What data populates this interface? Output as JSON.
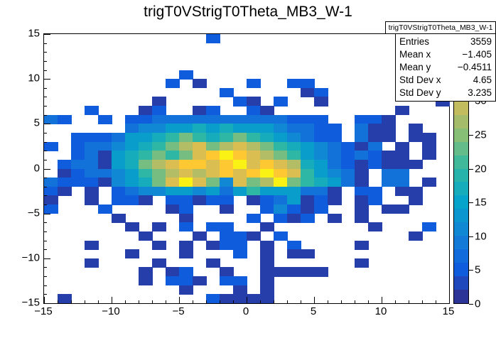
{
  "title": "trigT0VStrigT0Theta_MB3_W-1",
  "stats": {
    "title": "trigT0VStrigT0Theta_MB3_W-1",
    "rows": [
      {
        "label": "Entries",
        "value": "3559"
      },
      {
        "label": "Mean x",
        "value": "−1.405"
      },
      {
        "label": "Mean y",
        "value": "−0.4511"
      },
      {
        "label": "Std Dev x",
        "value": "4.65"
      },
      {
        "label": "Std Dev y",
        "value": "3.235"
      }
    ]
  },
  "axes": {
    "x_tick_values": [
      -15,
      -10,
      -5,
      0,
      5,
      10,
      15
    ],
    "x_tick_labels": [
      "−15",
      "−10",
      "−5",
      "0",
      "5",
      "10",
      "15"
    ],
    "y_tick_values": [
      15,
      10,
      5,
      0,
      -5,
      -10,
      -15
    ],
    "y_tick_labels": [
      "15",
      "10",
      "5",
      "0",
      "−5",
      "−10",
      "−15"
    ],
    "z_tick_values": [
      0,
      5,
      10,
      15,
      20,
      25,
      30,
      35,
      40
    ],
    "z_tick_labels": [
      "0",
      "5",
      "10",
      "15",
      "20",
      "25",
      "30",
      "35",
      "40"
    ]
  },
  "palette": [
    "#352a87",
    "#0f5cdd",
    "#1481d6",
    "#06a4ca",
    "#2eb7a4",
    "#87bf77",
    "#d1bb59",
    "#fec832",
    "#f9fb0e"
  ],
  "chart_data": {
    "type": "heatmap",
    "title": "trigT0VStrigT0Theta_MB3_W-1",
    "xlabel": "",
    "ylabel": "",
    "x_range": [
      -15,
      15
    ],
    "y_range": [
      -15,
      15
    ],
    "z_range": [
      0,
      40
    ],
    "x_bins": 30,
    "y_bins": 30,
    "grid": false,
    "legend_position": "right-colorbar",
    "z_row_order": "rows from y=+15 (top) to y=-15 (bottom); cols from x=-15 (left) to x=+15 (right); 0 = empty bin",
    "z": [
      [
        0,
        0,
        0,
        0,
        0,
        0,
        0,
        0,
        0,
        0,
        0,
        0,
        5,
        0,
        0,
        0,
        0,
        0,
        0,
        0,
        0,
        0,
        0,
        0,
        0,
        0,
        0,
        0,
        0,
        0
      ],
      [
        0,
        0,
        0,
        0,
        0,
        0,
        0,
        0,
        0,
        0,
        0,
        0,
        0,
        0,
        0,
        0,
        0,
        0,
        0,
        0,
        0,
        0,
        0,
        0,
        0,
        0,
        0,
        0,
        0,
        0
      ],
      [
        0,
        0,
        0,
        0,
        0,
        0,
        0,
        0,
        0,
        0,
        0,
        0,
        0,
        0,
        0,
        0,
        0,
        0,
        0,
        0,
        0,
        0,
        0,
        0,
        0,
        0,
        0,
        0,
        0,
        0
      ],
      [
        0,
        0,
        0,
        0,
        0,
        0,
        0,
        0,
        0,
        0,
        0,
        0,
        0,
        0,
        0,
        0,
        0,
        0,
        0,
        0,
        0,
        0,
        0,
        0,
        0,
        0,
        0,
        0,
        0,
        0
      ],
      [
        0,
        0,
        0,
        0,
        0,
        0,
        0,
        0,
        0,
        0,
        5,
        0,
        0,
        0,
        0,
        0,
        0,
        0,
        0,
        0,
        0,
        0,
        0,
        0,
        0,
        0,
        0,
        0,
        0,
        0
      ],
      [
        0,
        0,
        0,
        0,
        0,
        0,
        0,
        0,
        0,
        5,
        0,
        2,
        0,
        0,
        0,
        5,
        0,
        0,
        5,
        5,
        0,
        0,
        0,
        0,
        0,
        0,
        0,
        0,
        5,
        0
      ],
      [
        0,
        0,
        0,
        0,
        0,
        0,
        0,
        0,
        0,
        0,
        0,
        0,
        0,
        5,
        0,
        0,
        0,
        0,
        0,
        2,
        5,
        0,
        0,
        0,
        0,
        0,
        0,
        0,
        0,
        0
      ],
      [
        0,
        0,
        0,
        0,
        0,
        0,
        0,
        0,
        2,
        0,
        0,
        0,
        0,
        0,
        5,
        2,
        0,
        5,
        0,
        0,
        2,
        0,
        0,
        0,
        0,
        0,
        0,
        0,
        0,
        2
      ],
      [
        0,
        0,
        0,
        5,
        0,
        0,
        0,
        2,
        5,
        0,
        0,
        2,
        5,
        0,
        0,
        5,
        2,
        0,
        0,
        0,
        0,
        0,
        0,
        0,
        0,
        0,
        2,
        0,
        0,
        0
      ],
      [
        8,
        5,
        0,
        0,
        5,
        0,
        5,
        5,
        8,
        8,
        8,
        8,
        8,
        8,
        8,
        8,
        8,
        8,
        5,
        5,
        5,
        0,
        0,
        5,
        5,
        2,
        0,
        0,
        0,
        0
      ],
      [
        0,
        0,
        0,
        0,
        0,
        0,
        8,
        11,
        11,
        14,
        14,
        17,
        14,
        17,
        14,
        14,
        14,
        11,
        8,
        8,
        5,
        5,
        0,
        8,
        2,
        2,
        0,
        2,
        0,
        0
      ],
      [
        0,
        0,
        5,
        5,
        5,
        8,
        14,
        14,
        17,
        20,
        24,
        20,
        17,
        20,
        24,
        20,
        17,
        14,
        11,
        8,
        5,
        5,
        0,
        8,
        2,
        2,
        0,
        2,
        2,
        0
      ],
      [
        5,
        0,
        5,
        8,
        8,
        11,
        14,
        17,
        20,
        24,
        28,
        31,
        24,
        28,
        31,
        28,
        24,
        20,
        17,
        14,
        11,
        8,
        5,
        2,
        8,
        0,
        2,
        0,
        2,
        0
      ],
      [
        0,
        0,
        5,
        8,
        2,
        14,
        17,
        20,
        24,
        20,
        24,
        31,
        35,
        39,
        35,
        31,
        28,
        24,
        20,
        14,
        11,
        8,
        5,
        8,
        5,
        2,
        2,
        0,
        2,
        0
      ],
      [
        0,
        5,
        8,
        8,
        2,
        14,
        17,
        24,
        28,
        31,
        35,
        35,
        31,
        35,
        39,
        31,
        35,
        31,
        28,
        17,
        14,
        8,
        5,
        2,
        5,
        2,
        2,
        2,
        0,
        0
      ],
      [
        0,
        2,
        5,
        8,
        8,
        11,
        14,
        20,
        24,
        28,
        31,
        28,
        31,
        35,
        31,
        35,
        39,
        35,
        31,
        20,
        14,
        11,
        8,
        2,
        0,
        8,
        8,
        0,
        0,
        0
      ],
      [
        8,
        5,
        5,
        5,
        2,
        11,
        14,
        17,
        24,
        31,
        39,
        31,
        24,
        11,
        31,
        24,
        28,
        39,
        24,
        20,
        17,
        14,
        8,
        2,
        0,
        8,
        8,
        0,
        2,
        0
      ],
      [
        5,
        2,
        0,
        2,
        0,
        5,
        8,
        11,
        11,
        14,
        14,
        11,
        14,
        8,
        14,
        20,
        14,
        14,
        14,
        8,
        8,
        2,
        0,
        5,
        5,
        0,
        2,
        2,
        0,
        0
      ],
      [
        2,
        0,
        0,
        2,
        0,
        5,
        5,
        2,
        0,
        5,
        5,
        2,
        5,
        5,
        0,
        2,
        5,
        8,
        14,
        2,
        5,
        2,
        0,
        2,
        5,
        0,
        0,
        2,
        0,
        0
      ],
      [
        5,
        0,
        0,
        0,
        5,
        0,
        0,
        0,
        0,
        2,
        5,
        0,
        0,
        2,
        0,
        0,
        5,
        11,
        5,
        2,
        5,
        0,
        0,
        2,
        0,
        2,
        2,
        0,
        0,
        0
      ],
      [
        0,
        0,
        0,
        0,
        0,
        2,
        0,
        0,
        0,
        0,
        2,
        0,
        0,
        0,
        0,
        5,
        0,
        5,
        2,
        5,
        0,
        2,
        0,
        2,
        0,
        0,
        0,
        0,
        0,
        0
      ],
      [
        0,
        0,
        0,
        0,
        0,
        0,
        2,
        0,
        2,
        0,
        5,
        0,
        5,
        5,
        0,
        0,
        2,
        0,
        0,
        0,
        0,
        0,
        0,
        0,
        2,
        0,
        0,
        0,
        5,
        0
      ],
      [
        0,
        0,
        0,
        0,
        0,
        0,
        0,
        2,
        0,
        0,
        0,
        2,
        0,
        5,
        5,
        2,
        0,
        5,
        0,
        0,
        0,
        0,
        0,
        0,
        0,
        0,
        0,
        2,
        0,
        0
      ],
      [
        0,
        0,
        0,
        2,
        0,
        0,
        0,
        0,
        2,
        0,
        2,
        0,
        2,
        5,
        5,
        0,
        2,
        0,
        5,
        0,
        0,
        0,
        0,
        2,
        0,
        0,
        0,
        0,
        0,
        0
      ],
      [
        0,
        0,
        0,
        0,
        0,
        0,
        2,
        0,
        0,
        0,
        2,
        0,
        0,
        0,
        5,
        0,
        2,
        0,
        2,
        2,
        0,
        0,
        0,
        0,
        0,
        0,
        0,
        0,
        0,
        0
      ],
      [
        0,
        0,
        0,
        2,
        0,
        0,
        0,
        0,
        2,
        0,
        0,
        0,
        2,
        0,
        0,
        0,
        2,
        0,
        0,
        0,
        0,
        0,
        0,
        2,
        0,
        0,
        0,
        0,
        0,
        0
      ],
      [
        0,
        0,
        0,
        0,
        0,
        0,
        0,
        2,
        0,
        2,
        5,
        0,
        0,
        2,
        0,
        0,
        2,
        2,
        2,
        2,
        2,
        0,
        0,
        0,
        0,
        0,
        0,
        0,
        0,
        0
      ],
      [
        0,
        0,
        0,
        0,
        0,
        0,
        0,
        2,
        0,
        5,
        5,
        2,
        0,
        5,
        5,
        0,
        2,
        0,
        0,
        0,
        0,
        0,
        0,
        0,
        0,
        0,
        0,
        0,
        0,
        0
      ],
      [
        0,
        0,
        0,
        0,
        0,
        0,
        0,
        0,
        0,
        0,
        2,
        0,
        0,
        0,
        2,
        0,
        2,
        0,
        0,
        0,
        0,
        0,
        0,
        0,
        0,
        0,
        0,
        0,
        0,
        0
      ],
      [
        0,
        2,
        0,
        0,
        0,
        0,
        0,
        0,
        0,
        0,
        0,
        0,
        5,
        2,
        2,
        2,
        2,
        0,
        0,
        0,
        0,
        0,
        0,
        0,
        0,
        0,
        0,
        0,
        0,
        0
      ]
    ],
    "stats": {
      "entries": 3559,
      "mean_x": -1.405,
      "mean_y": -0.4511,
      "std_dev_x": 4.65,
      "std_dev_y": 3.235
    },
    "colorbar_ticks": [
      0,
      5,
      10,
      15,
      20,
      25,
      30,
      35,
      40
    ],
    "colorbar_contours": 20
  }
}
